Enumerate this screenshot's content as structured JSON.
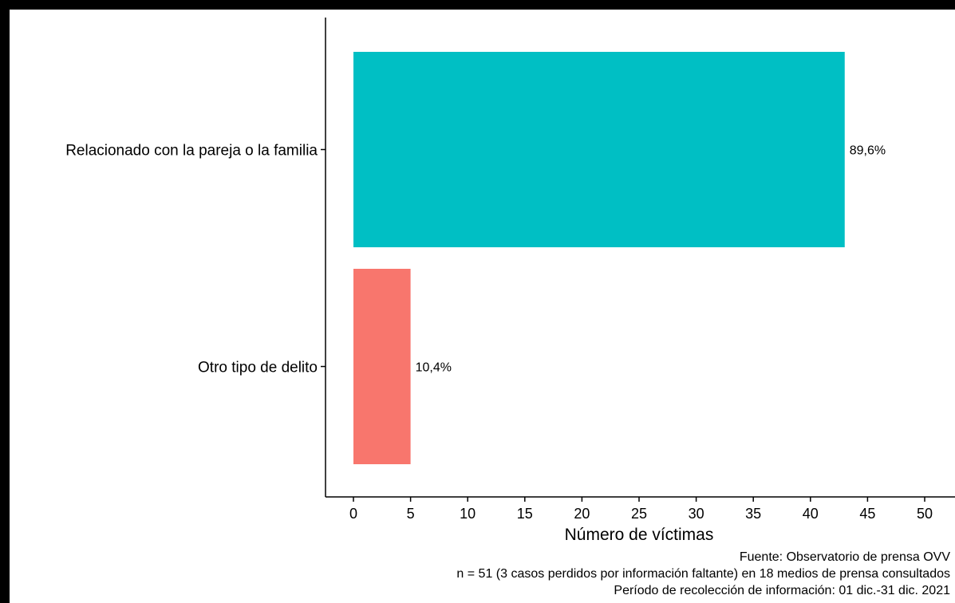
{
  "chart_data": {
    "type": "bar",
    "orientation": "horizontal",
    "categories": [
      "Relacionado con la pareja o la familia",
      "Otro tipo de delito"
    ],
    "values": [
      43,
      5
    ],
    "bar_labels": [
      "89,6%",
      "10,4%"
    ],
    "colors": [
      "#00BFC4",
      "#F8766D"
    ],
    "xlabel": "Número de víctimas",
    "xlim": [
      0,
      50
    ],
    "xticks": [
      0,
      5,
      10,
      15,
      20,
      25,
      30,
      35,
      40,
      45,
      50
    ],
    "grid": false,
    "legend": "none"
  },
  "caption": {
    "line1": "Fuente: Observatorio de prensa OVV",
    "line2": "n = 51 (3 casos perdidos por información faltante) en 18 medios de prensa consultados",
    "line3": "Período de recolección de información: 01 dic.-31 dic. 2021"
  }
}
